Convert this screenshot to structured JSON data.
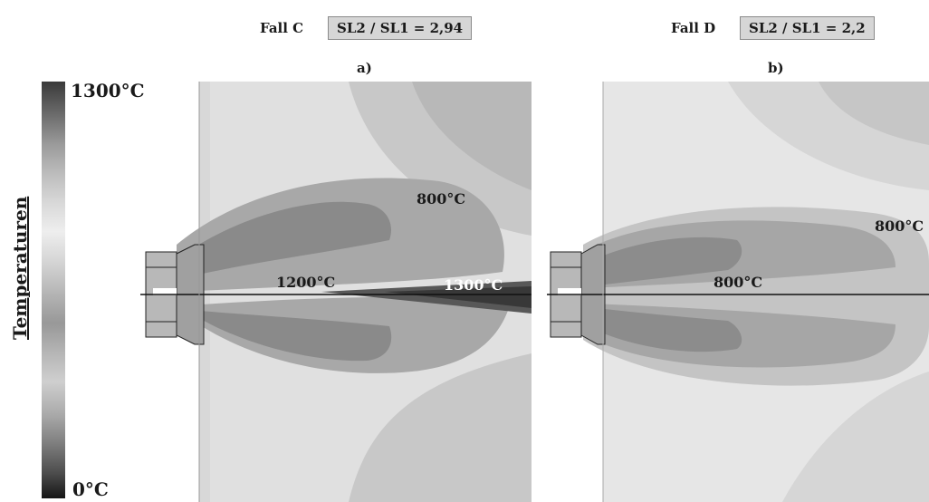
{
  "headers": {
    "case_c": {
      "label": "Fall C",
      "ratio": "SL2 / SL1 = 2,94"
    },
    "case_d": {
      "label": "Fall D",
      "ratio": "SL2 / SL1 = 2,2"
    }
  },
  "panels": {
    "a": {
      "label": "a)",
      "iso_upper": "800°C",
      "iso_axis_left": "1200°C",
      "iso_axis_right": "1300°C"
    },
    "b": {
      "label": "b)",
      "iso_upper": "800°C",
      "iso_axis": "800°C"
    }
  },
  "legend": {
    "title": "Temperaturen",
    "max_label": "1300°C",
    "min_label": "0°C"
  }
}
